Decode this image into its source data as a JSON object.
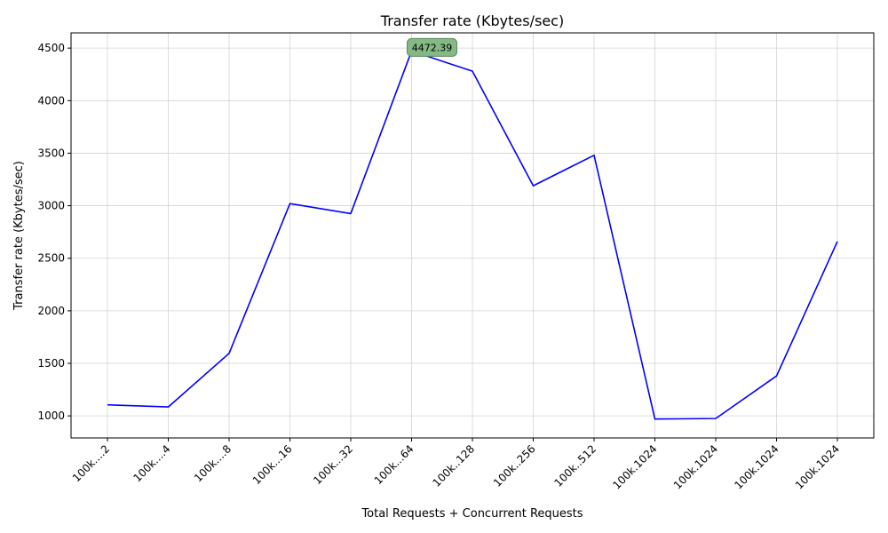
{
  "chart_data": {
    "type": "line",
    "title": "Transfer rate (Kbytes/sec)",
    "xlabel": "Total Requests + Concurrent Requests",
    "ylabel": "Transfer rate (Kbytes/sec)",
    "categories": [
      "100k....2",
      "100k....4",
      "100k....8",
      "100k...16",
      "100k...32",
      "100k...64",
      "100k..128",
      "100k..256",
      "100k..512",
      "100k.1024",
      "100k.1024",
      "100k.1024",
      "100k.1024"
    ],
    "series": [
      {
        "values": [
          1105,
          1085,
          1595,
          3020,
          2925,
          4472.39,
          4280,
          3190,
          3480,
          970,
          975,
          1380,
          2660
        ],
        "color": "#0000ff"
      }
    ],
    "yticks": [
      1000,
      1500,
      2000,
      2500,
      3000,
      3500,
      4000,
      4500
    ],
    "ylim": [
      790,
      4645
    ],
    "grid": true,
    "annotation": {
      "label": "4472.39",
      "category_index": 5,
      "marker_color": "#008000",
      "box_color": "#84b884"
    }
  }
}
